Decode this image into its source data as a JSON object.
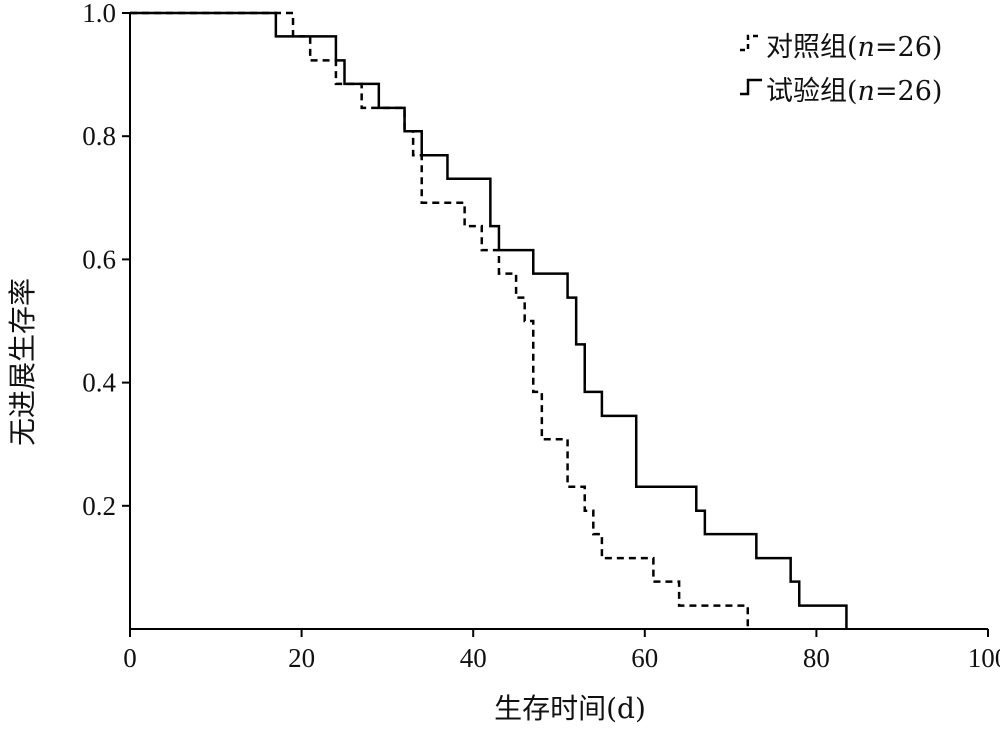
{
  "chart_data": {
    "type": "line",
    "subtype": "kaplan-meier-step",
    "xlabel": "生存时间(d)",
    "ylabel": "无进展生存率",
    "xlim": [
      0,
      100
    ],
    "ylim": [
      0,
      1.0
    ],
    "x_ticks": [
      "0",
      "20",
      "40",
      "60",
      "80",
      "100"
    ],
    "y_ticks": [
      "0.2",
      "0.4",
      "0.6",
      "0.8",
      "1.0"
    ],
    "grid": false,
    "legend_position": "top-right",
    "series": [
      {
        "name": "对照组(n=26)",
        "legend": {
          "prefix": "对照组(",
          "italic": "n",
          "suffix": "=26)"
        },
        "line_style": "dashed",
        "color": "#000000",
        "x": [
          0,
          19,
          21,
          24,
          27,
          32,
          33,
          34,
          39,
          41,
          43,
          45,
          46,
          47,
          48,
          51,
          53,
          54,
          55,
          61,
          64,
          72
        ],
        "y": [
          1.0,
          0.962,
          0.923,
          0.885,
          0.846,
          0.808,
          0.769,
          0.692,
          0.654,
          0.615,
          0.577,
          0.538,
          0.5,
          0.385,
          0.308,
          0.231,
          0.192,
          0.154,
          0.115,
          0.077,
          0.038,
          0.0
        ]
      },
      {
        "name": "试验组(n=26)",
        "legend": {
          "prefix": "试验组(",
          "italic": "n",
          "suffix": "=26)"
        },
        "line_style": "solid",
        "color": "#000000",
        "x": [
          0,
          17,
          24,
          25,
          29,
          32,
          33,
          34,
          37,
          42,
          43,
          44,
          47,
          51,
          52,
          53,
          55,
          59,
          66,
          67,
          73,
          77,
          78,
          83.5
        ],
        "y": [
          1.0,
          0.962,
          0.923,
          0.885,
          0.846,
          0.808,
          0.808,
          0.769,
          0.731,
          0.654,
          0.615,
          0.615,
          0.577,
          0.538,
          0.462,
          0.385,
          0.346,
          0.231,
          0.192,
          0.154,
          0.115,
          0.077,
          0.038,
          0.0
        ]
      }
    ]
  }
}
